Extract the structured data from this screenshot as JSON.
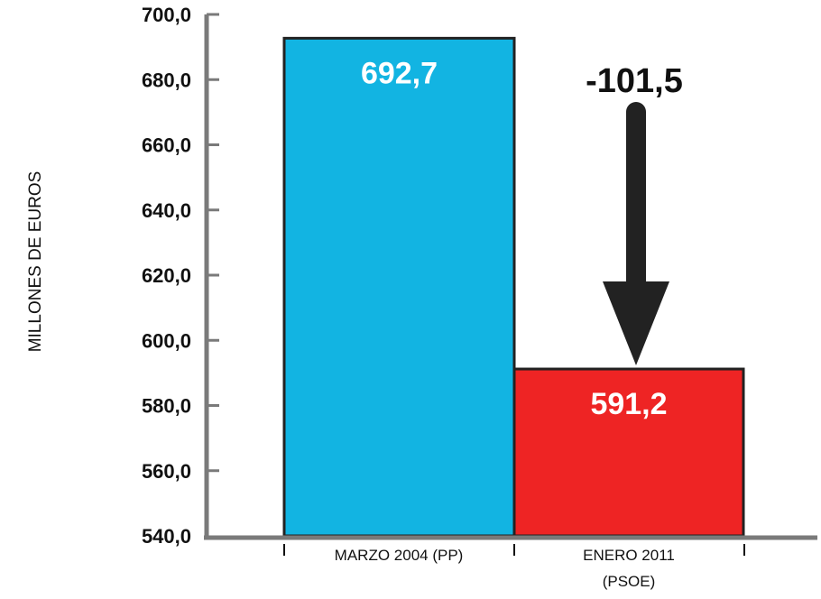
{
  "chart_data": {
    "type": "bar",
    "title": "",
    "xlabel": "",
    "ylabel": "MILLONES DE EUROS",
    "ylim": [
      540,
      700
    ],
    "yticks": [
      540,
      560,
      580,
      600,
      620,
      640,
      660,
      680,
      700
    ],
    "ytick_labels": [
      "540,0",
      "560,0",
      "580,0",
      "600,0",
      "620,0",
      "640,0",
      "660,0",
      "680,0",
      "700,0"
    ],
    "categories": [
      "MARZO 2004 (PP)",
      "ENERO 2011 (PSOE)"
    ],
    "category_lines": [
      [
        "MARZO 2004 (PP)"
      ],
      [
        "ENERO 2011",
        "(PSOE)"
      ]
    ],
    "values": [
      692.7,
      591.2
    ],
    "value_labels": [
      "692,7",
      "591,2"
    ],
    "bar_colors": [
      "#12b4e2",
      "#ee2424"
    ],
    "annotation": {
      "text": "-101,5",
      "arrow": "down",
      "from_category": 1
    },
    "grid": false,
    "legend": "none"
  }
}
